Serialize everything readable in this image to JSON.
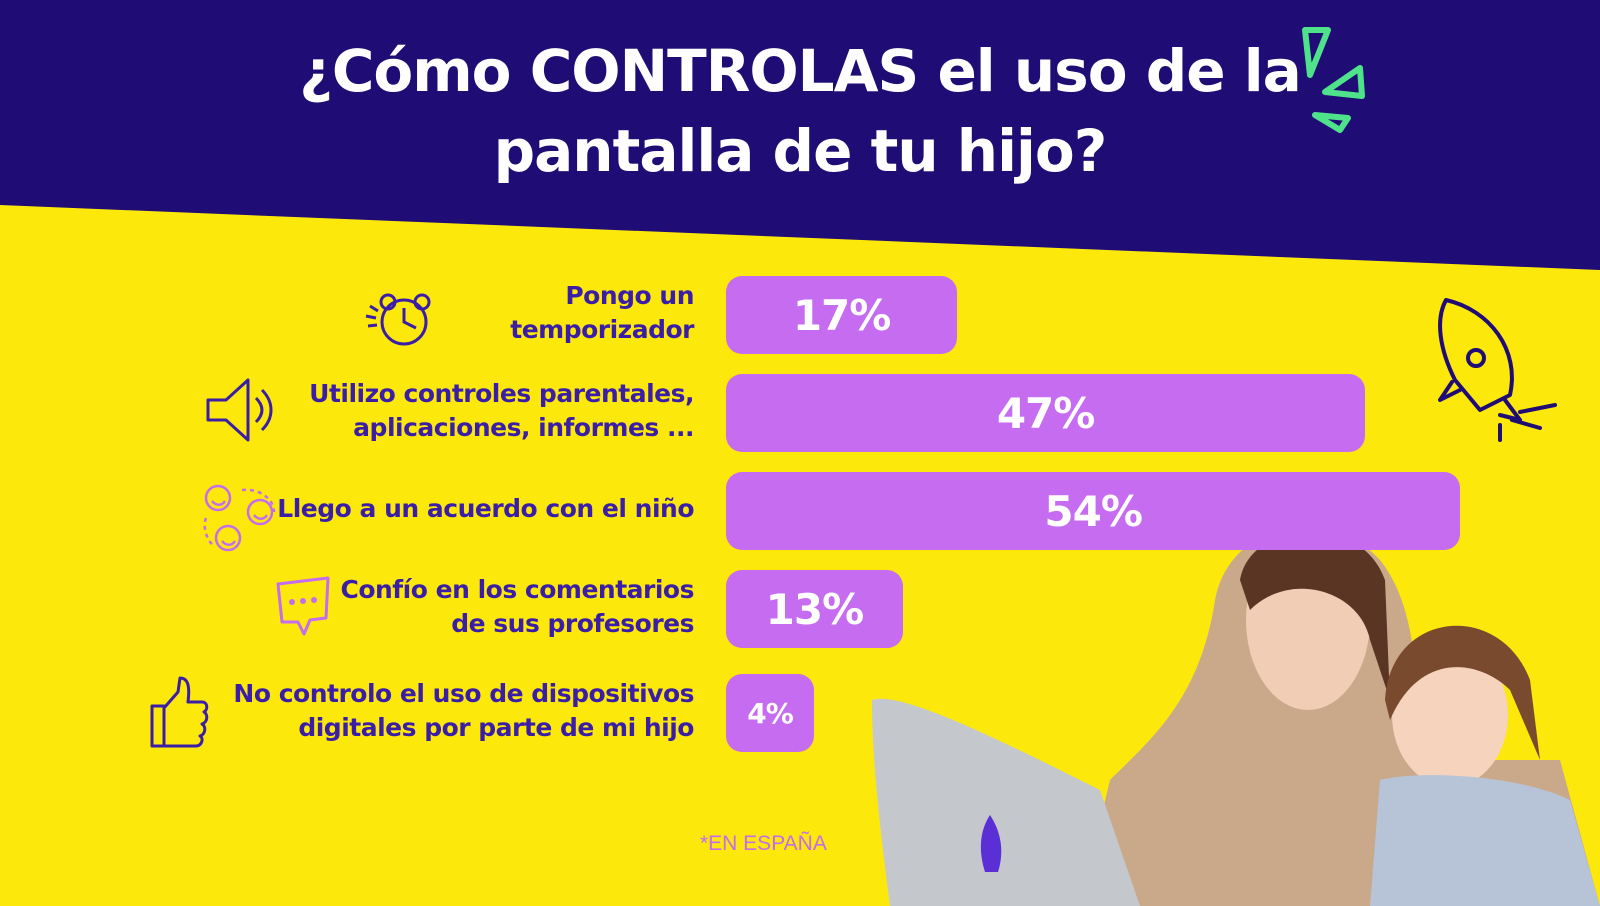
{
  "colors": {
    "header_bg": "#1f0c74",
    "body_bg": "#fde80c",
    "bar": "#c56cf0",
    "label": "#3a1ea8",
    "accent_green": "#4ee38b"
  },
  "chart_data": {
    "type": "bar",
    "orientation": "horizontal",
    "title": "¿Cómo CONTROLAS el uso de la pantalla de tu hijo?",
    "title_lines": [
      "¿Cómo CONTROLAS el uso de la",
      "pantalla de tu hijo?"
    ],
    "categories": [
      [
        "Pongo un",
        "temporizador"
      ],
      [
        "Utilizo controles parentales,",
        "aplicaciones, informes ..."
      ],
      [
        "Llego a un acuerdo con el niño"
      ],
      [
        "Confío en los comentarios",
        "de sus profesores"
      ],
      [
        "No controlo el uso de dispositivos",
        "digitales por parte de mi hijo"
      ]
    ],
    "values": [
      17,
      47,
      54,
      13,
      4
    ],
    "value_labels": [
      "17%",
      "47%",
      "54%",
      "13%",
      "4%"
    ],
    "icons": [
      "alarm-clock-icon",
      "speaker-icon",
      "smiley-faces-icon",
      "chat-bubble-icon",
      "thumbs-up-icon"
    ],
    "unit": "%",
    "grid": false,
    "legend": "none"
  },
  "footnote": "*EN ESPAÑA"
}
